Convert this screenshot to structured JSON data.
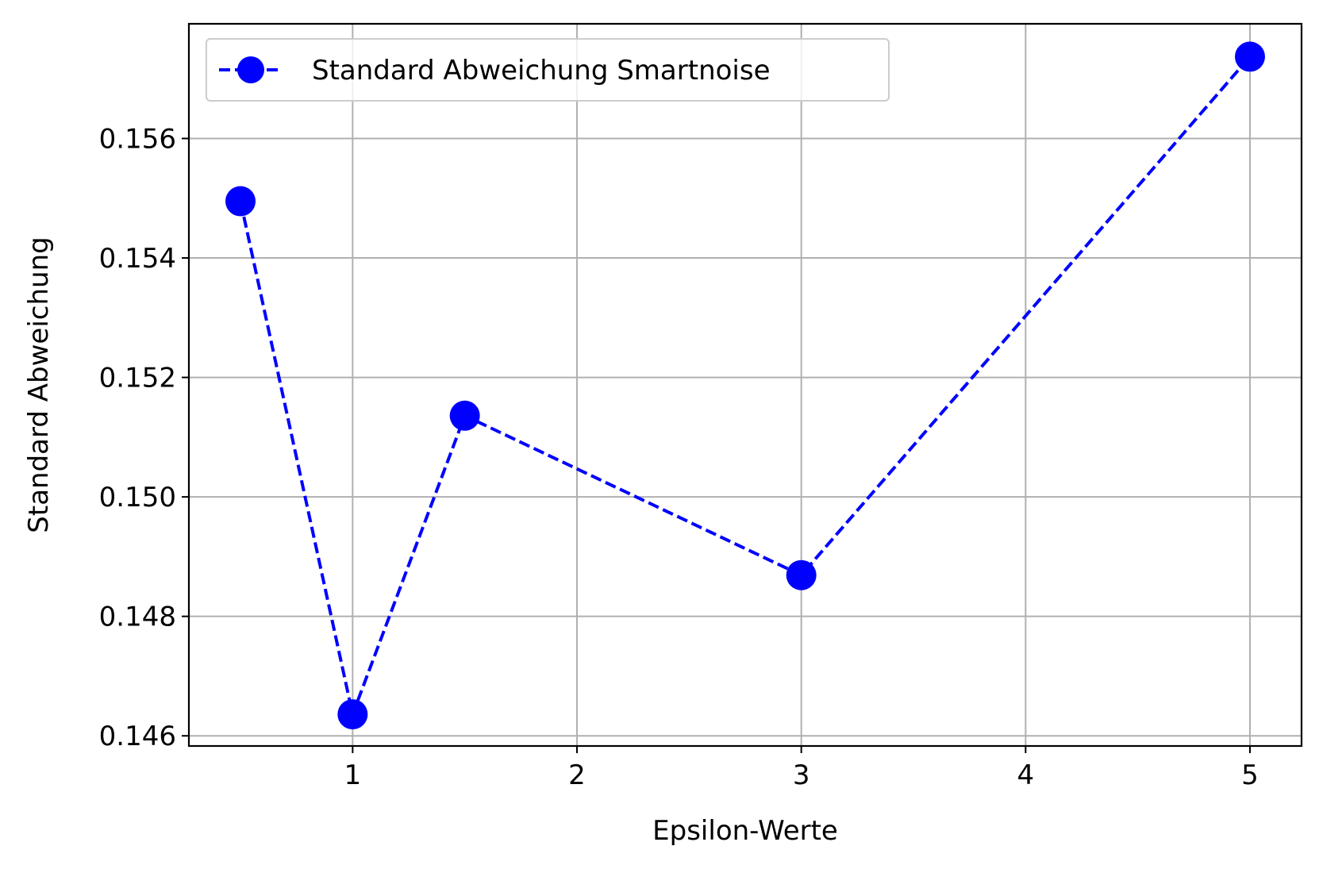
{
  "chart_data": {
    "type": "line",
    "title": "",
    "xlabel": "Epsilon-Werte",
    "ylabel": "Standard Abweichung",
    "xlim": [
      0.27,
      5.23
    ],
    "ylim": [
      0.14583,
      0.15792
    ],
    "xticks": [
      1,
      2,
      3,
      4,
      5
    ],
    "xtick_labels": [
      "1",
      "2",
      "3",
      "4",
      "5"
    ],
    "yticks": [
      0.146,
      0.148,
      0.15,
      0.152,
      0.154,
      0.156
    ],
    "ytick_labels": [
      "0.146",
      "0.148",
      "0.150",
      "0.152",
      "0.154",
      "0.156"
    ],
    "grid": true,
    "legend_position": "upper-left",
    "series": [
      {
        "name": "Standard Abweichung Smartnoise",
        "color": "#0000ff",
        "line_style": "dashed",
        "marker": "circle",
        "x": [
          0.5,
          1.0,
          1.5,
          3.0,
          5.0
        ],
        "y": [
          0.15495,
          0.14636,
          0.15136,
          0.14869,
          0.15737
        ]
      }
    ]
  }
}
